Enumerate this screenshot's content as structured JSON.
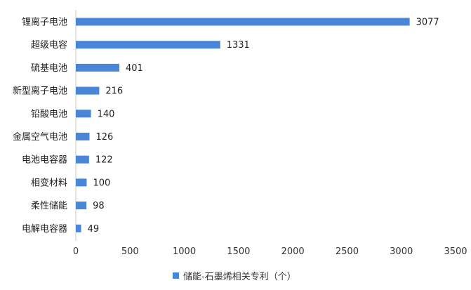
{
  "chart_data": {
    "type": "bar",
    "orientation": "horizontal",
    "categories": [
      "锂离子电池",
      "超级电容",
      "硫基电池",
      "新型离子电池",
      "铅酸电池",
      "金属空气电池",
      "电池电容器",
      "相变材料",
      "柔性储能",
      "电解电容器"
    ],
    "series": [
      {
        "name": "储能-石墨烯相关专利（个）",
        "values": [
          3077,
          1331,
          401,
          216,
          140,
          126,
          122,
          100,
          98,
          49
        ]
      }
    ],
    "xlim": [
      0,
      3500
    ],
    "xticks": [
      0,
      500,
      1000,
      1500,
      2000,
      2500,
      3000,
      3500
    ],
    "tick_labels": [
      "0",
      "500",
      "1000",
      "1500",
      "2000",
      "2500",
      "3000",
      "3500"
    ],
    "grid": false,
    "legend_position": "bottom",
    "bar_color": "#4a86d8"
  }
}
